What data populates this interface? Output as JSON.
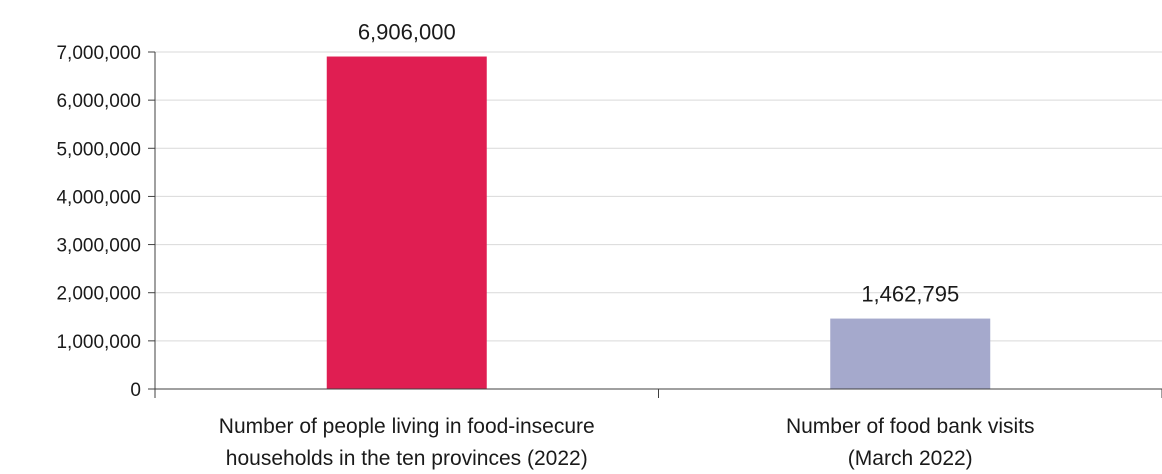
{
  "chart_data": {
    "type": "bar",
    "categories": [
      [
        "Number of people living in food-insecure",
        "households in the ten provinces (2022)"
      ],
      [
        "Number of food bank visits",
        "(March 2022)"
      ]
    ],
    "values": [
      6906000,
      1462795
    ],
    "data_labels": [
      "6,906,000",
      "1,462,795"
    ],
    "bar_colors": [
      "#e01e52",
      "#a5a9cc"
    ],
    "ylim": [
      0,
      7000000
    ],
    "yticks": [
      0,
      1000000,
      2000000,
      3000000,
      4000000,
      5000000,
      6000000,
      7000000
    ],
    "ytick_labels": [
      "0",
      "1,000,000",
      "2,000,000",
      "3,000,000",
      "4,000,000",
      "5,000,000",
      "6,000,000",
      "7,000,000"
    ],
    "grid": true,
    "gridline_color": "#d9d9d9",
    "axis_color": "#404040"
  }
}
